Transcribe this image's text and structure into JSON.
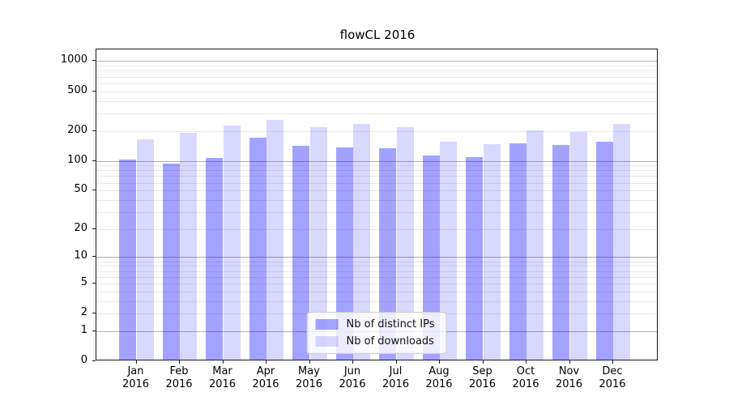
{
  "title": "flowCL 2016",
  "chart_data": {
    "type": "bar",
    "title": "flowCL 2016",
    "categories": [
      "Jan 2016",
      "Feb 2016",
      "Mar 2016",
      "Apr 2016",
      "May 2016",
      "Jun 2016",
      "Jul 2016",
      "Aug 2016",
      "Sep 2016",
      "Oct 2016",
      "Nov 2016",
      "Dec 2016"
    ],
    "series": [
      {
        "name": "Nb of distinct IPs",
        "color": "rgba(0,0,255,0.36)",
        "values": [
          102,
          93,
          106,
          170,
          142,
          136,
          133,
          112,
          109,
          150,
          145,
          156
        ]
      },
      {
        "name": "Nb of downloads",
        "color": "rgba(0,0,255,0.15)",
        "values": [
          166,
          191,
          227,
          259,
          219,
          235,
          218,
          155,
          146,
          202,
          196,
          236
        ]
      }
    ],
    "xlabel": "",
    "ylabel": "",
    "yscale": "log1p",
    "ylim": [
      0,
      1285
    ],
    "yticks": [
      0,
      1,
      2,
      5,
      10,
      20,
      50,
      100,
      200,
      500,
      1000
    ],
    "major_gridlines": [
      1,
      10,
      100,
      1000
    ],
    "minor_gridlines": [
      2,
      3,
      4,
      5,
      6,
      7,
      8,
      9,
      20,
      30,
      40,
      50,
      60,
      70,
      80,
      90,
      200,
      300,
      400,
      500,
      600,
      700,
      800,
      900
    ],
    "grid": "on",
    "legend_position": "lower center inside",
    "colors": {
      "axis": "#1a1a1a",
      "major_grid": "#b0b0b0",
      "minor_grid": "#e8e8e8",
      "background": "#ffffff"
    }
  }
}
